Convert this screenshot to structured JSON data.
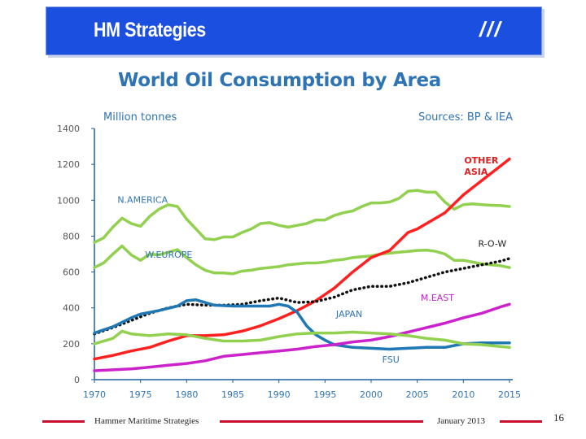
{
  "header": {
    "title": "HM Strategies",
    "mark": "///"
  },
  "chart_data": {
    "type": "line",
    "title": "World Oil Consumption by Area",
    "ylabel": "Million tonnes",
    "source": "Sources: BP & IEA",
    "xlim": [
      1970,
      2015
    ],
    "ylim": [
      0,
      1400
    ],
    "xticks": [
      1970,
      1975,
      1980,
      1985,
      1990,
      1995,
      2000,
      2005,
      2010,
      2015
    ],
    "yticks": [
      0,
      200,
      400,
      600,
      800,
      1000,
      1200,
      1400
    ],
    "series": [
      {
        "name": "N.AMERICA",
        "label": "N.AMERICA",
        "color": "#92d050",
        "x": [
          1970,
          1971,
          1972,
          1973,
          1974,
          1975,
          1976,
          1977,
          1978,
          1979,
          1980,
          1981,
          1982,
          1983,
          1984,
          1985,
          1986,
          1987,
          1988,
          1989,
          1990,
          1991,
          1992,
          1993,
          1994,
          1995,
          1996,
          1997,
          1998,
          1999,
          2000,
          2001,
          2002,
          2003,
          2004,
          2005,
          2006,
          2007,
          2008,
          2009,
          2010,
          2011,
          2012,
          2013,
          2014,
          2015
        ],
        "y": [
          765,
          790,
          850,
          900,
          870,
          855,
          910,
          950,
          975,
          965,
          895,
          840,
          785,
          780,
          795,
          795,
          820,
          840,
          870,
          875,
          860,
          850,
          860,
          870,
          890,
          890,
          915,
          930,
          940,
          965,
          985,
          985,
          990,
          1010,
          1050,
          1055,
          1045,
          1045,
          990,
          950,
          975,
          980,
          975,
          972,
          970,
          965
        ]
      },
      {
        "name": "W.EUROPE",
        "label": "W.EUROPE",
        "color": "#92d050",
        "x": [
          1970,
          1971,
          1972,
          1973,
          1974,
          1975,
          1976,
          1977,
          1978,
          1979,
          1980,
          1981,
          1982,
          1983,
          1984,
          1985,
          1986,
          1987,
          1988,
          1989,
          1990,
          1991,
          1992,
          1993,
          1994,
          1995,
          1996,
          1997,
          1998,
          1999,
          2000,
          2001,
          2002,
          2003,
          2004,
          2005,
          2006,
          2007,
          2008,
          2009,
          2010,
          2011,
          2012,
          2013,
          2014,
          2015
        ],
        "y": [
          625,
          650,
          700,
          745,
          695,
          665,
          700,
          695,
          710,
          725,
          680,
          640,
          610,
          595,
          595,
          590,
          605,
          610,
          620,
          625,
          630,
          640,
          645,
          650,
          650,
          655,
          665,
          670,
          680,
          685,
          690,
          700,
          705,
          710,
          715,
          720,
          722,
          715,
          700,
          665,
          665,
          655,
          645,
          640,
          635,
          625
        ]
      },
      {
        "name": "OTHER ASIA",
        "label": "OTHER ASIA",
        "color": "#ff2020",
        "x": [
          1970,
          1972,
          1974,
          1976,
          1978,
          1980,
          1982,
          1984,
          1986,
          1988,
          1990,
          1992,
          1994,
          1996,
          1998,
          2000,
          2002,
          2004,
          2005,
          2006,
          2008,
          2010,
          2012,
          2014,
          2015
        ],
        "y": [
          115,
          135,
          160,
          180,
          215,
          245,
          245,
          250,
          270,
          300,
          340,
          385,
          440,
          510,
          600,
          680,
          720,
          820,
          840,
          870,
          930,
          1030,
          1110,
          1190,
          1230
        ]
      },
      {
        "name": "R-O-W",
        "label": "R-O-W",
        "color": "#111111",
        "dashed": true,
        "x": [
          1970,
          1972,
          1974,
          1976,
          1978,
          1980,
          1982,
          1984,
          1986,
          1988,
          1990,
          1992,
          1994,
          1996,
          1998,
          2000,
          2002,
          2004,
          2006,
          2008,
          2010,
          2012,
          2014,
          2015
        ],
        "y": [
          255,
          290,
          330,
          370,
          400,
          420,
          415,
          415,
          420,
          440,
          455,
          430,
          435,
          460,
          500,
          520,
          520,
          540,
          570,
          600,
          620,
          640,
          660,
          675
        ]
      },
      {
        "name": "JAPAN",
        "label": "JAPAN",
        "color": "#1f77b4",
        "x": [
          1970,
          1972,
          1974,
          1975,
          1977,
          1979,
          1980,
          1981,
          1982,
          1983,
          1985,
          1987,
          1989,
          1990,
          1991,
          1992,
          1993,
          1994,
          1995,
          1996,
          1998,
          2000,
          2002,
          2004,
          2006,
          2008,
          2010,
          2012,
          2014,
          2015
        ],
        "y": [
          260,
          295,
          345,
          365,
          385,
          410,
          440,
          445,
          430,
          415,
          410,
          410,
          410,
          420,
          410,
          375,
          300,
          250,
          220,
          195,
          180,
          175,
          170,
          175,
          180,
          180,
          200,
          205,
          205,
          205
        ]
      },
      {
        "name": "M.EAST",
        "label": "M.EAST",
        "color": "#cc22cc",
        "x": [
          1970,
          1972,
          1974,
          1976,
          1978,
          1980,
          1982,
          1984,
          1986,
          1988,
          1990,
          1992,
          1994,
          1996,
          1998,
          2000,
          2002,
          2004,
          2006,
          2008,
          2010,
          2012,
          2014,
          2015
        ],
        "y": [
          50,
          55,
          60,
          70,
          80,
          90,
          105,
          130,
          140,
          150,
          160,
          170,
          185,
          195,
          210,
          220,
          240,
          265,
          290,
          315,
          345,
          370,
          405,
          420
        ]
      },
      {
        "name": "FSU",
        "label": "FSU",
        "color": "#92d050",
        "x": [
          1970,
          1972,
          1973,
          1974,
          1976,
          1978,
          1980,
          1982,
          1984,
          1986,
          1988,
          1990,
          1992,
          1994,
          1996,
          1998,
          2000,
          2002,
          2004,
          2006,
          2008,
          2010,
          2012,
          2014,
          2015
        ],
        "y": [
          200,
          230,
          270,
          255,
          245,
          255,
          250,
          230,
          215,
          215,
          220,
          240,
          255,
          260,
          260,
          265,
          260,
          255,
          245,
          230,
          220,
          200,
          195,
          185,
          180
        ]
      }
    ]
  },
  "footer": {
    "left": "Hammer Maritime Strategies",
    "right": "January 2013",
    "page": "16"
  },
  "colors": {
    "banner": "#1a4fe0",
    "title": "#2e74b5",
    "axis": "#1f5f9f",
    "tick_label": "#555555",
    "annotation": "#2e74b5",
    "footer_line": "#c8102e"
  }
}
